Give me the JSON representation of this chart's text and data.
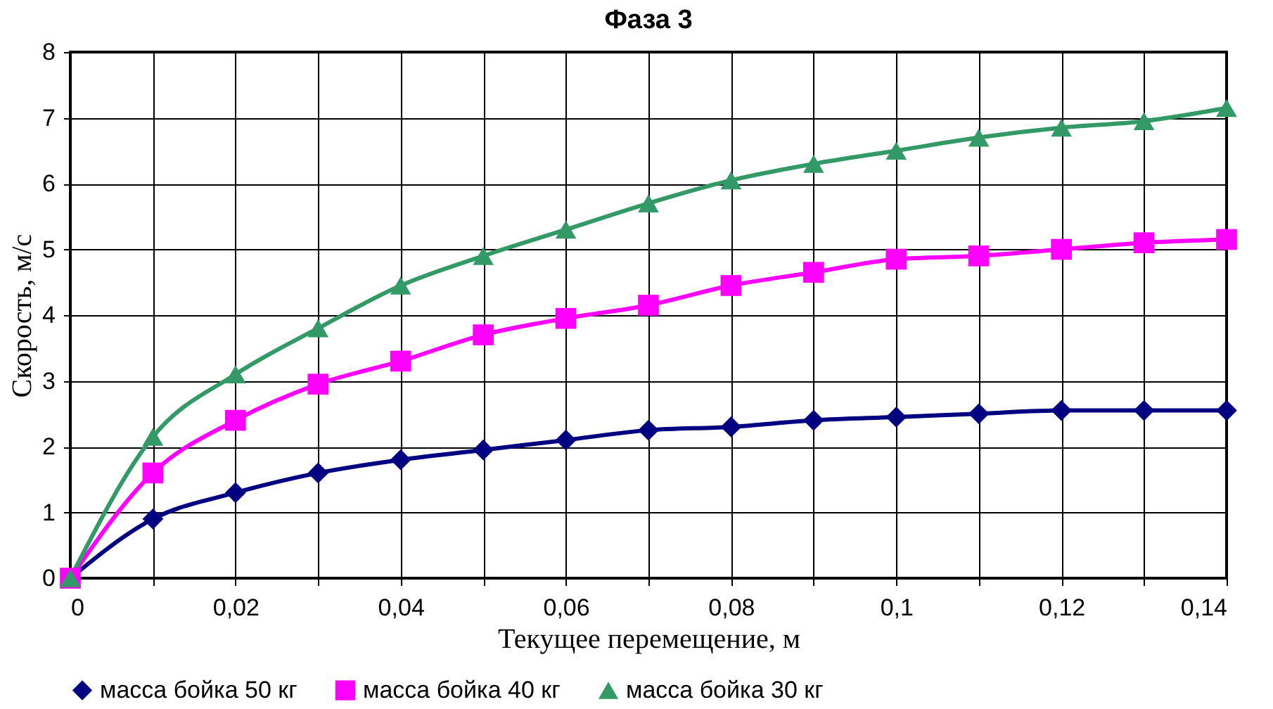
{
  "chart_data": {
    "type": "line",
    "title": "Фаза 3",
    "xlabel": "Текущее перемещение, м",
    "ylabel": "Скорость, м/с",
    "x": [
      0,
      0.01,
      0.02,
      0.03,
      0.04,
      0.05,
      0.06,
      0.07,
      0.08,
      0.09,
      0.1,
      0.11,
      0.12,
      0.13,
      0.14
    ],
    "series": [
      {
        "name": "масса бойка 50 кг",
        "color": "#000080",
        "marker": "diamond",
        "values": [
          0,
          0.9,
          1.3,
          1.6,
          1.8,
          1.95,
          2.1,
          2.25,
          2.3,
          2.4,
          2.45,
          2.5,
          2.55,
          2.55,
          2.55
        ]
      },
      {
        "name": "масса бойка 40 кг",
        "color": "#ff00ff",
        "marker": "square",
        "values": [
          0,
          1.6,
          2.4,
          2.95,
          3.3,
          3.7,
          3.95,
          4.15,
          4.45,
          4.65,
          4.85,
          4.9,
          5.0,
          5.1,
          5.15
        ]
      },
      {
        "name": "масса бойка 30 кг",
        "color": "#339966",
        "marker": "triangle",
        "values": [
          0,
          2.15,
          3.1,
          3.8,
          4.45,
          4.9,
          5.3,
          5.7,
          6.05,
          6.3,
          6.5,
          6.7,
          6.85,
          6.95,
          7.15
        ]
      }
    ],
    "xlim": [
      0,
      0.14
    ],
    "xticks": [
      0,
      {
        "value": 0.01,
        "label": null
      },
      {
        "value": 0.02,
        "label": "0,02"
      },
      {
        "value": 0.03,
        "label": null
      },
      {
        "value": 0.04,
        "label": "0,04"
      },
      {
        "value": 0.05,
        "label": null
      },
      {
        "value": 0.06,
        "label": "0,06"
      },
      {
        "value": 0.07,
        "label": null
      },
      {
        "value": 0.08,
        "label": "0,08"
      },
      {
        "value": 0.09,
        "label": null
      },
      {
        "value": 0.1,
        "label": "0,1"
      },
      {
        "value": 0.11,
        "label": null
      },
      {
        "value": 0.12,
        "label": "0,12"
      },
      {
        "value": 0.13,
        "label": null
      },
      {
        "value": 0.14,
        "label": "0,14"
      }
    ],
    "ylim": [
      0,
      8
    ],
    "yticks": [
      0,
      1,
      2,
      3,
      4,
      5,
      6,
      7,
      8
    ],
    "grid": true,
    "legend": "bottom",
    "line_style": "solid"
  }
}
